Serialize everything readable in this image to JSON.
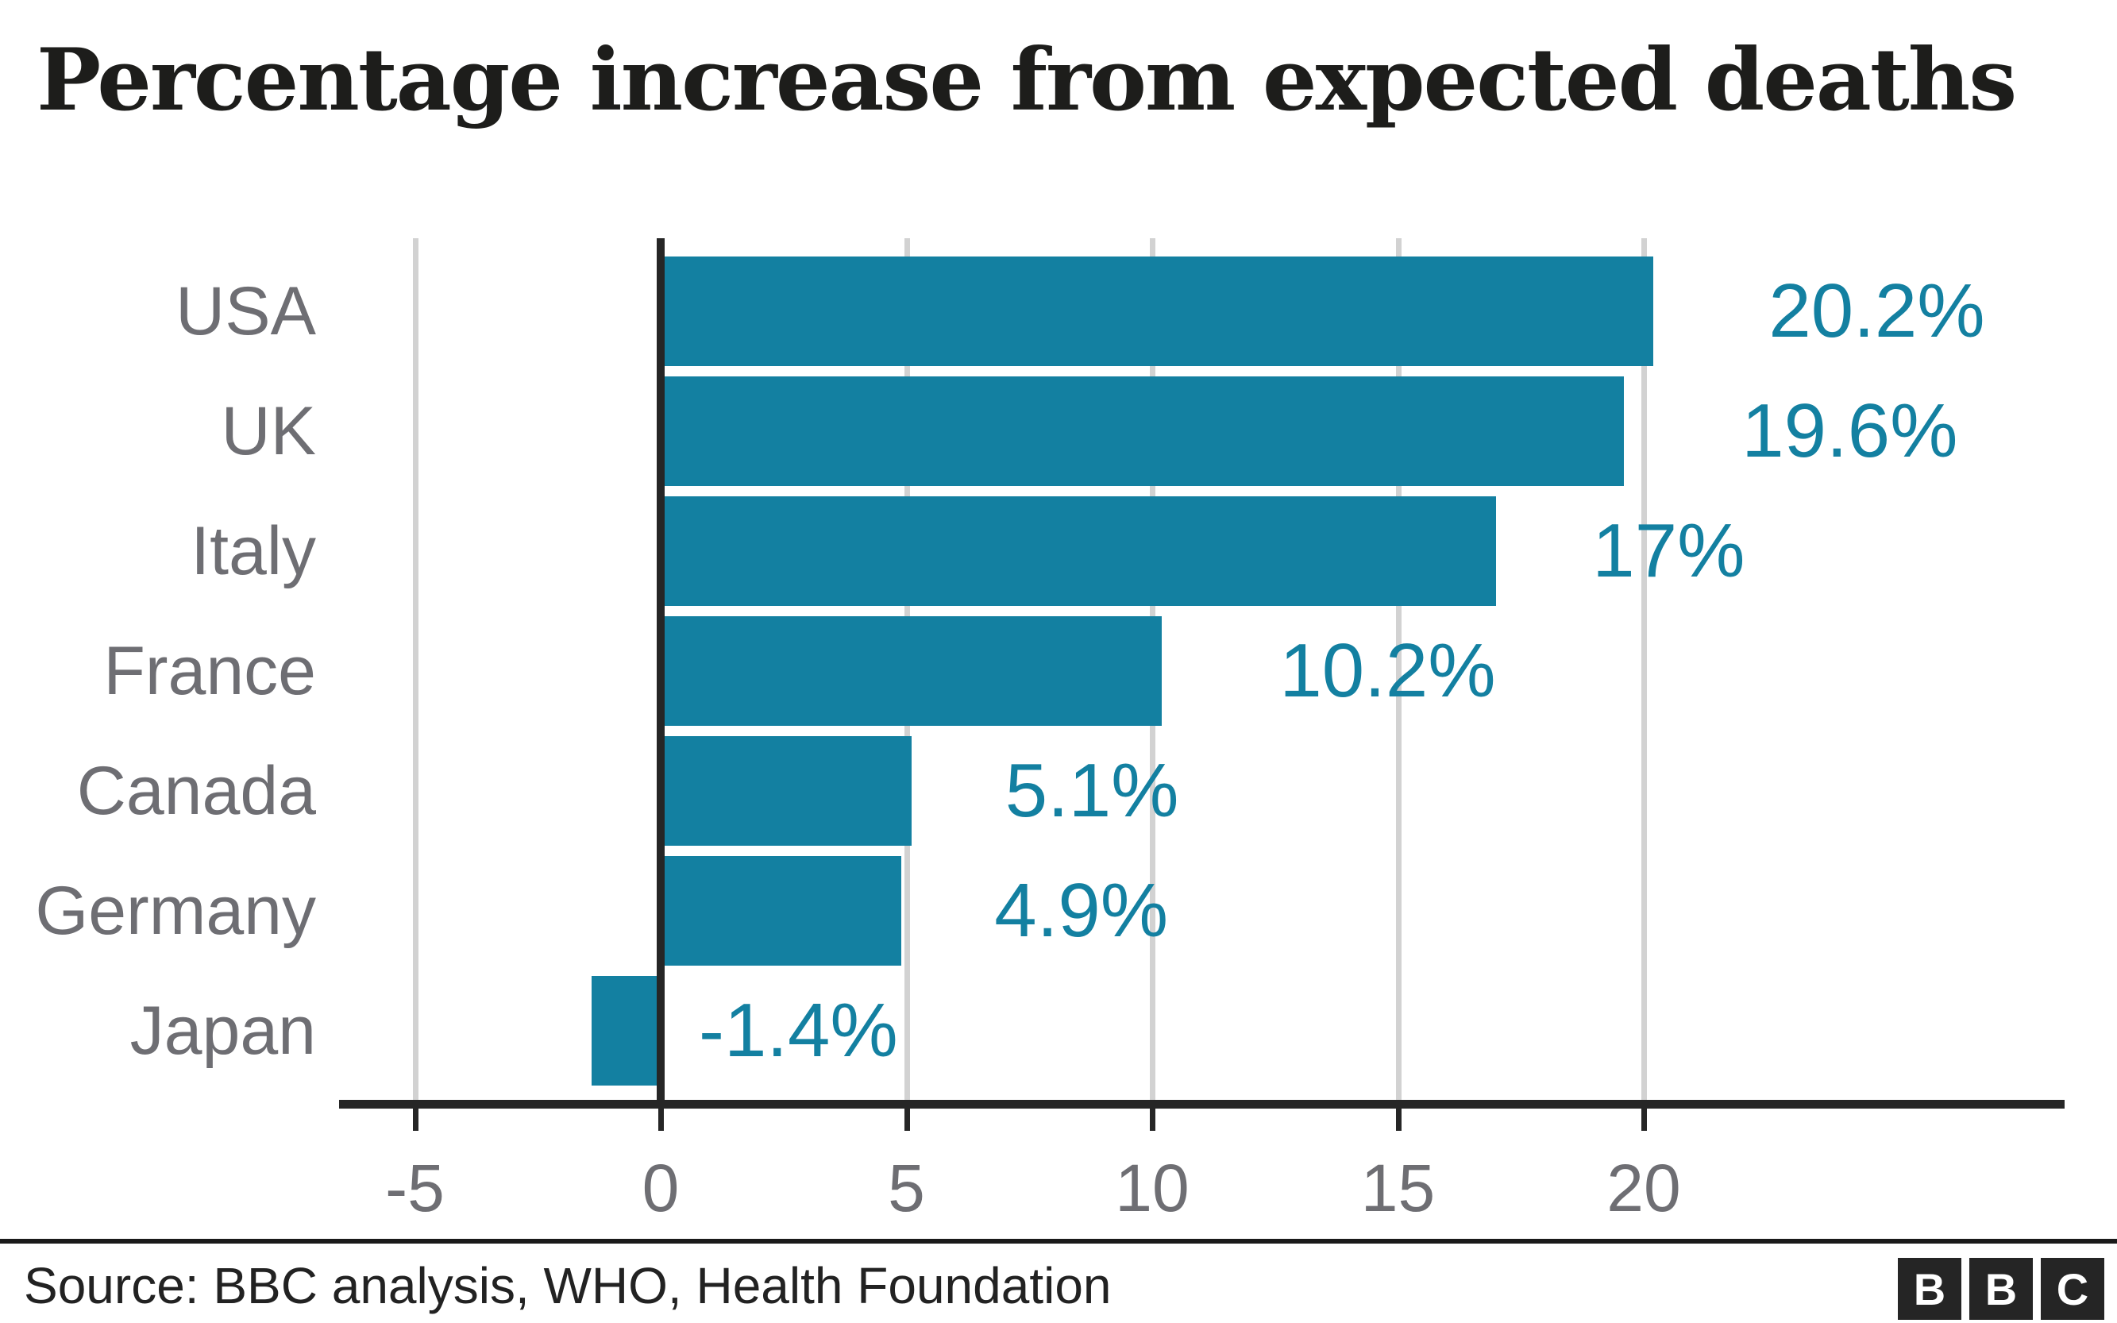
{
  "title": "Percentage increase from expected deaths",
  "footer": {
    "source": "Source: BBC analysis, WHO, Health Foundation",
    "logo_letters": [
      "B",
      "B",
      "C"
    ]
  },
  "colors": {
    "bar": "#1380A1",
    "value_label": "#1380A1",
    "category_label": "#6e6e73",
    "tick_label": "#6e6e73",
    "grid": "#d2d2d2",
    "axis": "#262626",
    "title": "#1d1d1b"
  },
  "chart_data": {
    "type": "bar",
    "orientation": "horizontal",
    "title": "Percentage increase from expected deaths",
    "categories": [
      "USA",
      "UK",
      "Italy",
      "France",
      "Canada",
      "Germany",
      "Japan"
    ],
    "values": [
      20.2,
      19.6,
      17,
      10.2,
      5.1,
      4.9,
      -1.4
    ],
    "value_labels": [
      "20.2%",
      "19.6%",
      "17%",
      "10.2%",
      "5.1%",
      "4.9%",
      "-1.4%"
    ],
    "xlabel": "",
    "ylabel": "",
    "x_ticks": [
      -5,
      0,
      5,
      10,
      15,
      20
    ],
    "xlim": [
      -6.5,
      28.5
    ],
    "grid": "vertical-gridlines",
    "legend": false,
    "source": "Source: BBC analysis, WHO, Health Foundation"
  }
}
